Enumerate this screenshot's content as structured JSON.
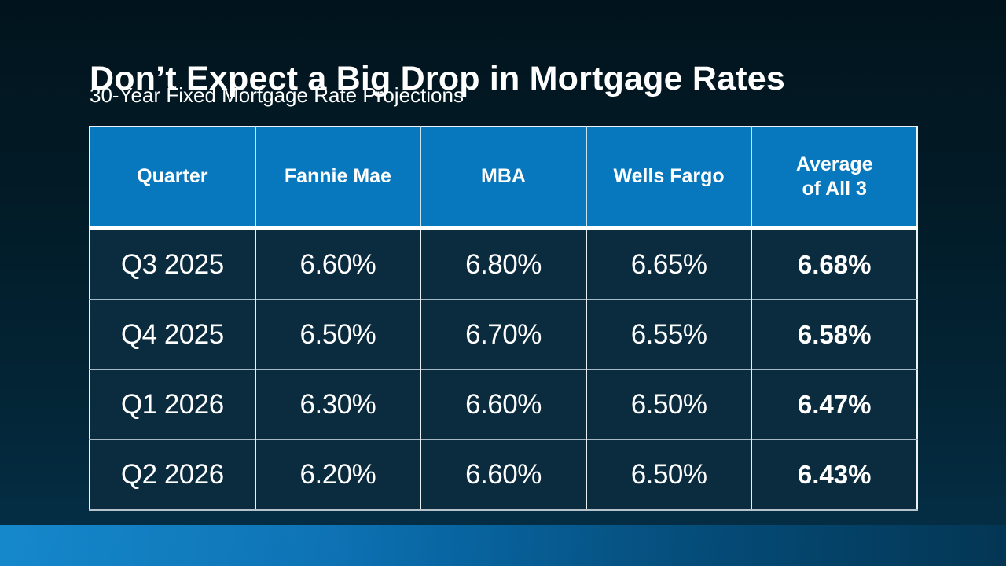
{
  "slide": {
    "title": "Don’t Expect a Big Drop in Mortgage Rates",
    "subtitle": "30-Year Fixed Mortgage Rate Projections"
  },
  "table": {
    "columns": [
      "Quarter",
      "Fannie Mae",
      "MBA",
      "Wells Fargo",
      "Average\nof All 3"
    ],
    "rows": [
      {
        "quarter": "Q3 2025",
        "fannie_mae": "6.60%",
        "mba": "6.80%",
        "wells_fargo": "6.65%",
        "average": "6.68%"
      },
      {
        "quarter": "Q4 2025",
        "fannie_mae": "6.50%",
        "mba": "6.70%",
        "wells_fargo": "6.55%",
        "average": "6.58%"
      },
      {
        "quarter": "Q1 2026",
        "fannie_mae": "6.30%",
        "mba": "6.60%",
        "wells_fargo": "6.50%",
        "average": "6.47%"
      },
      {
        "quarter": "Q2 2026",
        "fannie_mae": "6.20%",
        "mba": "6.60%",
        "wells_fargo": "6.50%",
        "average": "6.43%"
      }
    ]
  },
  "colors": {
    "header_blue": "#0778bd",
    "cell_navy": "#0b2b3e",
    "background_top": "#01141d",
    "background_bottom": "#053049",
    "footer_bar_left": "#0781c8",
    "footer_bar_right": "#033a5a",
    "text": "#ffffff"
  },
  "chart_data": {
    "type": "table",
    "title": "Don’t Expect a Big Drop in Mortgage Rates",
    "subtitle": "30-Year Fixed Mortgage Rate Projections",
    "categories": [
      "Q3 2025",
      "Q4 2025",
      "Q1 2026",
      "Q2 2026"
    ],
    "series": [
      {
        "name": "Fannie Mae",
        "values": [
          6.6,
          6.5,
          6.3,
          6.2
        ]
      },
      {
        "name": "MBA",
        "values": [
          6.8,
          6.7,
          6.6,
          6.6
        ]
      },
      {
        "name": "Wells Fargo",
        "values": [
          6.65,
          6.55,
          6.5,
          6.5
        ]
      },
      {
        "name": "Average of All 3",
        "values": [
          6.68,
          6.58,
          6.47,
          6.43
        ]
      }
    ],
    "unit": "%"
  }
}
